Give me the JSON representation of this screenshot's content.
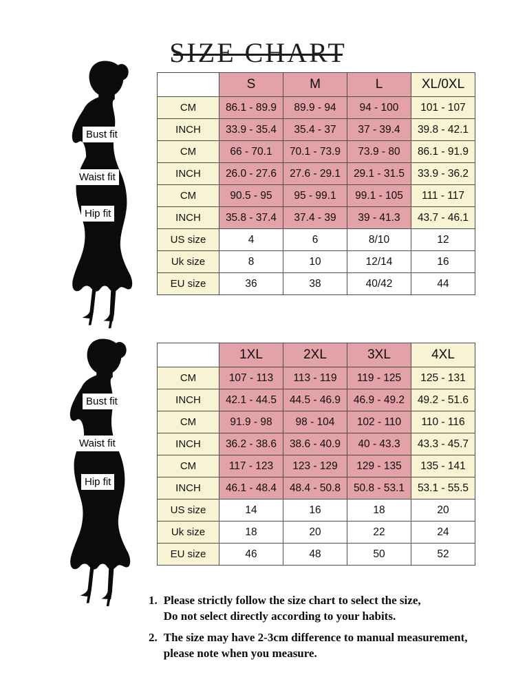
{
  "title": "SIZE CHART",
  "fit_labels": {
    "bust": "Bust fit",
    "waist": "Waist fit",
    "hip": "Hip fit"
  },
  "colors": {
    "pink": "#e3a2a8",
    "cream": "#f7f3d3",
    "table_border": "#4d4d4d",
    "silhouette": "#0b0b0b"
  },
  "chart_data": [
    {
      "type": "table",
      "name": "sizes-s-to-xl",
      "corner_label": "",
      "columns": [
        "S",
        "M",
        "L",
        "XL/0XL"
      ],
      "rows": [
        {
          "name": "bust-cm",
          "label": "CM",
          "type": "measure",
          "values": [
            "86.1 - 89.9",
            "89.9 - 94",
            "94 - 100",
            "101 - 107"
          ]
        },
        {
          "name": "bust-inch",
          "label": "INCH",
          "type": "measure",
          "values": [
            "33.9 - 35.4",
            "35.4 - 37",
            "37 - 39.4",
            "39.8 - 42.1"
          ]
        },
        {
          "name": "waist-cm",
          "label": "CM",
          "type": "measure",
          "values": [
            "66 - 70.1",
            "70.1 - 73.9",
            "73.9 - 80",
            "86.1 - 91.9"
          ]
        },
        {
          "name": "waist-inch",
          "label": "INCH",
          "type": "measure",
          "values": [
            "26.0 - 27.6",
            "27.6 - 29.1",
            "29.1 - 31.5",
            "33.9 - 36.2"
          ]
        },
        {
          "name": "hip-cm",
          "label": "CM",
          "type": "measure",
          "values": [
            "90.5 - 95",
            "95 - 99.1",
            "99.1 - 105",
            "111 - 117"
          ]
        },
        {
          "name": "hip-inch",
          "label": "INCH",
          "type": "measure",
          "values": [
            "35.8 - 37.4",
            "37.4 - 39",
            "39 - 41.3",
            "43.7 - 46.1"
          ]
        },
        {
          "name": "us-size",
          "label": "US size",
          "type": "size",
          "values": [
            "4",
            "6",
            "8/10",
            "12"
          ]
        },
        {
          "name": "uk-size",
          "label": "Uk size",
          "type": "size",
          "values": [
            "8",
            "10",
            "12/14",
            "16"
          ]
        },
        {
          "name": "eu-size",
          "label": "EU size",
          "type": "size",
          "values": [
            "36",
            "38",
            "40/42",
            "44"
          ]
        }
      ]
    },
    {
      "type": "table",
      "name": "sizes-1xl-to-4xl",
      "corner_label": "",
      "columns": [
        "1XL",
        "2XL",
        "3XL",
        "4XL"
      ],
      "rows": [
        {
          "name": "bust-cm",
          "label": "CM",
          "type": "measure",
          "values": [
            "107 - 113",
            "113 - 119",
            "119 - 125",
            "125 - 131"
          ]
        },
        {
          "name": "bust-inch",
          "label": "INCH",
          "type": "measure",
          "values": [
            "42.1 - 44.5",
            "44.5 - 46.9",
            "46.9 - 49.2",
            "49.2 - 51.6"
          ]
        },
        {
          "name": "waist-cm",
          "label": "CM",
          "type": "measure",
          "values": [
            "91.9 - 98",
            "98 - 104",
            "102 - 110",
            "110 - 116"
          ]
        },
        {
          "name": "waist-inch",
          "label": "INCH",
          "type": "measure",
          "values": [
            "36.2 - 38.6",
            "38.6 - 40.9",
            "40 - 43.3",
            "43.3 - 45.7"
          ]
        },
        {
          "name": "hip-cm",
          "label": "CM",
          "type": "measure",
          "values": [
            "117 - 123",
            "123 - 129",
            "129 - 135",
            "135 - 141"
          ]
        },
        {
          "name": "hip-inch",
          "label": "INCH",
          "type": "measure",
          "values": [
            "46.1 - 48.4",
            "48.4 - 50.8",
            "50.8 - 53.1",
            "53.1 - 55.5"
          ]
        },
        {
          "name": "us-size",
          "label": "US size",
          "type": "size",
          "values": [
            "14",
            "16",
            "18",
            "20"
          ]
        },
        {
          "name": "uk-size",
          "label": "Uk size",
          "type": "size",
          "values": [
            "18",
            "20",
            "22",
            "24"
          ]
        },
        {
          "name": "eu-size",
          "label": "EU size",
          "type": "size",
          "values": [
            "46",
            "48",
            "50",
            "52"
          ]
        }
      ]
    }
  ],
  "notes": [
    {
      "number": "1.",
      "lines": [
        "Please strictly follow the size chart to select the size,",
        "Do not select directly according to your habits."
      ]
    },
    {
      "number": "2.",
      "lines": [
        "The size may have 2-3cm difference to manual measurement,",
        "please note when you measure."
      ]
    }
  ]
}
